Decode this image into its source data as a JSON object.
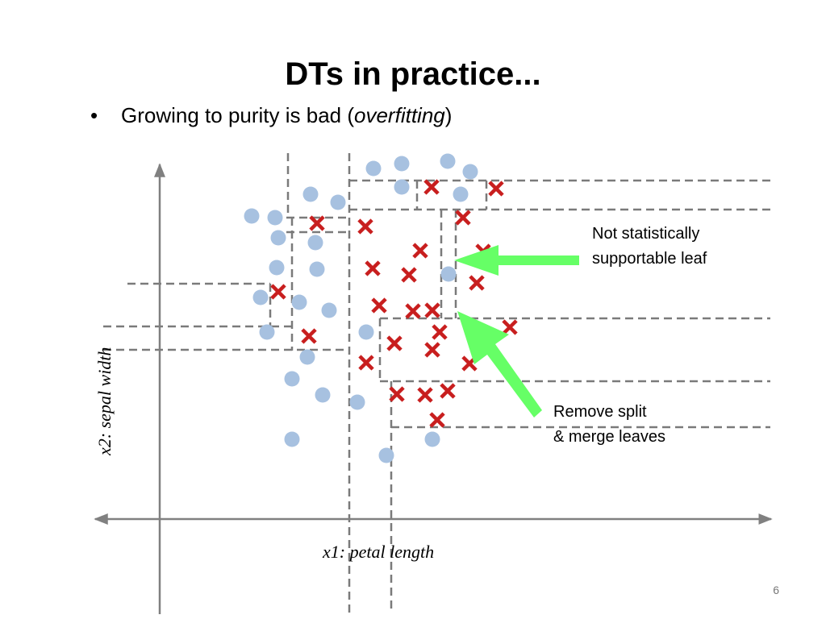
{
  "title": "DTs in practice...",
  "bullet": {
    "symbol": "•",
    "text_before": "Growing to purity is bad (",
    "text_emphasis": "overfitting",
    "text_after": ")"
  },
  "annotations": {
    "top": {
      "line1": "Not statistically",
      "line2": "supportable leaf"
    },
    "bottom": {
      "line1": "Remove split",
      "line2": "& merge leaves"
    }
  },
  "axes": {
    "x_label": "x1: petal length",
    "y_label": "x2: sepal width"
  },
  "page_number": "6",
  "colors": {
    "circle_class": "#a7c1e0",
    "cross_class": "#c81e1e",
    "split_lines": "#7a7a7a",
    "axis": "#808080",
    "arrow": "#66ff66"
  },
  "marker_types": {
    "class_a": "circle-marker",
    "class_b": "cross-marker"
  }
}
